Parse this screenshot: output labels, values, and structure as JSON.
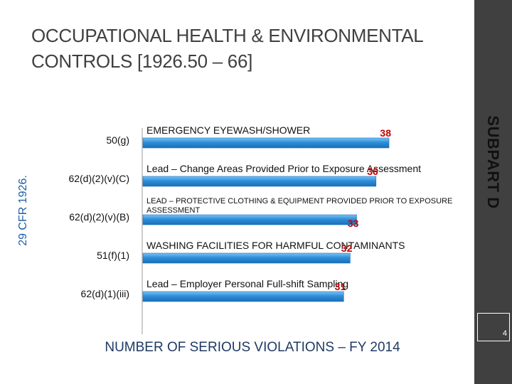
{
  "slide": {
    "title": "OCCUPATIONAL HEALTH & ENVIRONMENTAL CONTROLS [1926.50 – 66]",
    "side_label": "SUBPART D",
    "left_label": "29 CFR 1926.",
    "bottom_label": "NUMBER OF SERIOUS VIOLATIONS – FY 2014",
    "page_number": "4"
  },
  "colors": {
    "bar": "#2e8ed8",
    "bar_highlight": "#7cc3f4",
    "value_label": "#c00000",
    "sidebar": "#404040"
  },
  "chart_data": {
    "type": "bar",
    "orientation": "horizontal",
    "categories": [
      "50(g)",
      "62(d)(2)(v)(C)",
      "62(d)(2)(v)(B)",
      "51(f)(1)",
      "62(d)(1)(iii)"
    ],
    "descriptions": [
      "EMERGENCY EYEWASH/SHOWER",
      "Lead – Change Areas Provided Prior to Exposure Assessment",
      "LEAD – PROTECTIVE CLOTHING & EQUIPMENT PROVIDED PRIOR TO EXPOSURE ASSESSMENT",
      "WASHING FACILITIES FOR HARMFUL CONTAMINANTS",
      "Lead – Employer Personal Full-shift Sampling"
    ],
    "values": [
      38,
      36,
      33,
      32,
      31
    ],
    "data_labels": [
      "38",
      "36",
      "33",
      "32",
      "31"
    ],
    "xlabel": "NUMBER OF SERIOUS VIOLATIONS – FY 2014",
    "ylabel": "29 CFR 1926.",
    "grid": false,
    "legend": "none"
  }
}
